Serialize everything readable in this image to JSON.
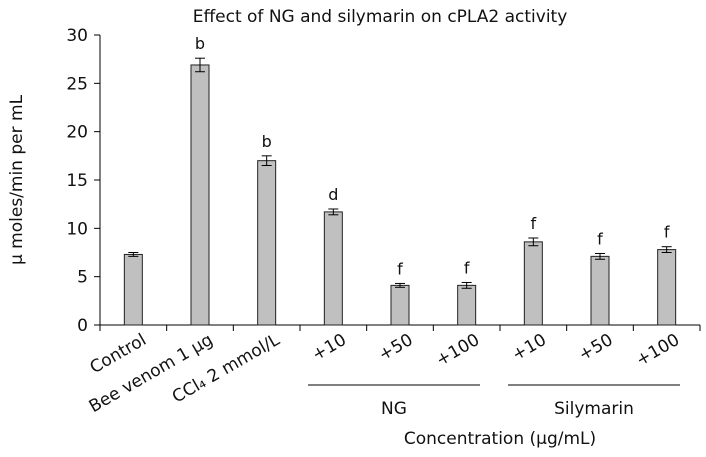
{
  "chart_data": {
    "type": "bar",
    "title": "Effect of NG and silymarin on cPLA2 activity",
    "ylabel": "μ moles/min per mL",
    "xlabel": "Concentration (μg/mL)",
    "ylim": [
      0,
      30
    ],
    "yticks": [
      "0",
      "5",
      "10",
      "15",
      "20",
      "25",
      "30"
    ],
    "categories": [
      "Control",
      "Bee venom 1 μg",
      "CCl₄ 2 mmol/L",
      "+10",
      "+50",
      "+100",
      "+10",
      "+50",
      "+100"
    ],
    "values": [
      7.3,
      26.9,
      17.0,
      11.7,
      4.1,
      4.1,
      8.6,
      7.1,
      7.8
    ],
    "errors": [
      0.2,
      0.7,
      0.5,
      0.3,
      0.2,
      0.3,
      0.4,
      0.3,
      0.3
    ],
    "annotations": [
      "",
      "b",
      "b",
      "d",
      "f",
      "f",
      "f",
      "f",
      "f"
    ],
    "groups": [
      {
        "label": "NG",
        "start": 3,
        "end": 5
      },
      {
        "label": "Silymarin",
        "start": 6,
        "end": 8
      }
    ],
    "bar_color": "#c0c0c0",
    "grid": false
  }
}
